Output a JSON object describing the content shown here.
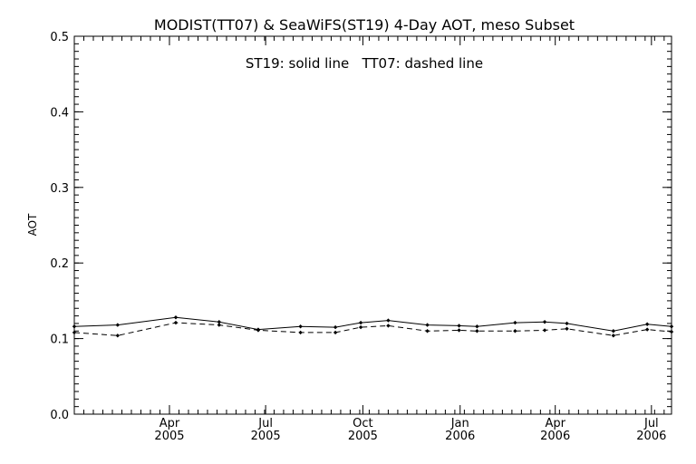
{
  "chart_data": {
    "type": "line",
    "title": "MODIST(TT07) & SeaWiFS(ST19) 4-Day AOT, meso Subset",
    "annotation": "ST19: solid line   TT07: dashed line",
    "xlabel": "",
    "ylabel": "AOT",
    "xlim": [
      "2005-01-01",
      "2006-07-20"
    ],
    "ylim": [
      0.0,
      0.5
    ],
    "yticks": [
      {
        "value": 0.0,
        "label": "0.0"
      },
      {
        "value": 0.1,
        "label": "0.1"
      },
      {
        "value": 0.2,
        "label": "0.2"
      },
      {
        "value": 0.3,
        "label": "0.3"
      },
      {
        "value": 0.4,
        "label": "0.4"
      },
      {
        "value": 0.5,
        "label": "0.5"
      }
    ],
    "xticks": [
      {
        "value": "2005-04-01",
        "month": "Apr",
        "year": "2005"
      },
      {
        "value": "2005-07-01",
        "month": "Jul",
        "year": "2005"
      },
      {
        "value": "2005-10-01",
        "month": "Oct",
        "year": "2005"
      },
      {
        "value": "2006-01-01",
        "month": "Jan",
        "year": "2006"
      },
      {
        "value": "2006-04-01",
        "month": "Apr",
        "year": "2006"
      },
      {
        "value": "2006-07-01",
        "month": "Jul",
        "year": "2006"
      }
    ],
    "x": [
      "2005-01-01",
      "2005-02-11",
      "2005-04-07",
      "2005-05-18",
      "2005-06-24",
      "2005-08-03",
      "2005-09-05",
      "2005-09-29",
      "2005-10-25",
      "2005-12-01",
      "2005-12-31",
      "2006-01-17",
      "2006-02-22",
      "2006-03-22",
      "2006-04-12",
      "2006-05-26",
      "2006-06-27",
      "2006-07-20"
    ],
    "series": [
      {
        "name": "ST19",
        "style": "solid",
        "color": "#000000",
        "values": [
          0.116,
          0.118,
          0.128,
          0.122,
          0.112,
          0.116,
          0.115,
          0.121,
          0.124,
          0.118,
          0.117,
          0.116,
          0.121,
          0.122,
          0.12,
          0.11,
          0.119,
          0.116
        ]
      },
      {
        "name": "TT07",
        "style": "dashed",
        "color": "#000000",
        "values": [
          0.108,
          0.104,
          0.121,
          0.118,
          0.111,
          0.108,
          0.108,
          0.115,
          0.117,
          0.11,
          0.111,
          0.11,
          0.11,
          0.111,
          0.113,
          0.104,
          0.112,
          0.109
        ]
      }
    ],
    "grid": false,
    "marker": "diamond"
  }
}
